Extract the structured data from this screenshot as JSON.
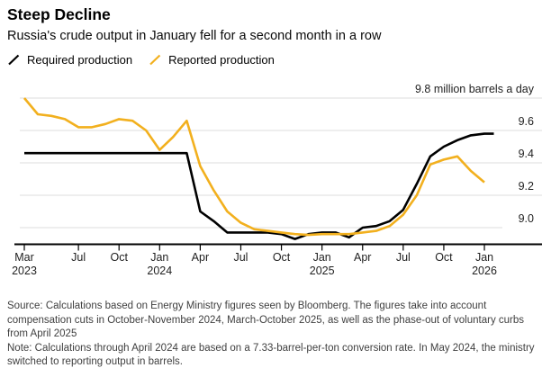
{
  "header": {
    "title": "Steep Decline",
    "subtitle": "Russia's crude output in January fell for a second month in a row"
  },
  "footer": {
    "source": "Source: Calculations based on Energy Ministry figures seen by Bloomberg. The figures take into account compensation cuts in October-November 2024, March-October 2025, as well as the phase-out of voluntary curbs from April 2025",
    "note": "Note: Calculations through April 2024 are based on a 7.33-barrel-per-ton conversion rate. In May 2024, the ministry switched to reporting output in barrels."
  },
  "colors": {
    "required_line": "#000000",
    "reported_line": "#F2B01E",
    "gridline": "#dcdcdc",
    "axis": "#000000",
    "tick_label": "#1f1f1f"
  },
  "chart_data": {
    "type": "line",
    "title": "Steep Decline",
    "subtitle": "Russia's crude output in January fell for a second month in a row",
    "unit": "million barrels a day",
    "x_start_month": "2023-03",
    "x_end_month": "2026-01",
    "ylim": [
      8.88,
      9.85
    ],
    "grid": "horizontal",
    "legend_position": "top-left",
    "x_ticks": [
      {
        "m": 0,
        "label": "Mar",
        "year": "2023"
      },
      {
        "m": 4,
        "label": "Jul"
      },
      {
        "m": 7,
        "label": "Oct"
      },
      {
        "m": 10,
        "label": "Jan",
        "year": "2024"
      },
      {
        "m": 13,
        "label": "Apr"
      },
      {
        "m": 16,
        "label": "Jul"
      },
      {
        "m": 19,
        "label": "Oct"
      },
      {
        "m": 22,
        "label": "Jan",
        "year": "2025"
      },
      {
        "m": 25,
        "label": "Apr"
      },
      {
        "m": 28,
        "label": "Jul"
      },
      {
        "m": 31,
        "label": "Oct"
      },
      {
        "m": 34,
        "label": "Jan",
        "year": "2026"
      }
    ],
    "y_ticks": [
      {
        "v": 9.8,
        "label": "9.8 million barrels a day"
      },
      {
        "v": 9.6,
        "label": "9.6"
      },
      {
        "v": 9.4,
        "label": "9.4"
      },
      {
        "v": 9.2,
        "label": "9.2"
      },
      {
        "v": 9.0,
        "label": "9.0",
        "short_grid": true
      }
    ],
    "series": [
      {
        "name": "Required production",
        "color": "#000000",
        "extend_months": 0.7,
        "values": [
          9.46,
          9.46,
          9.46,
          9.46,
          9.46,
          9.46,
          9.46,
          9.46,
          9.46,
          9.46,
          9.46,
          9.46,
          9.46,
          9.1,
          9.04,
          8.97,
          8.97,
          8.97,
          8.97,
          8.96,
          8.93,
          8.96,
          8.97,
          8.97,
          8.94,
          9.0,
          9.01,
          9.04,
          9.11,
          9.27,
          9.44,
          9.5,
          9.54,
          9.57,
          9.58
        ]
      },
      {
        "name": "Reported production",
        "color": "#F2B01E",
        "values": [
          9.8,
          9.7,
          9.69,
          9.67,
          9.62,
          9.62,
          9.64,
          9.67,
          9.66,
          9.6,
          9.48,
          9.56,
          9.66,
          9.38,
          9.23,
          9.1,
          9.03,
          8.99,
          8.98,
          8.97,
          8.96,
          8.955,
          8.96,
          8.96,
          8.96,
          8.97,
          8.98,
          9.01,
          9.08,
          9.2,
          9.39,
          9.42,
          9.44,
          9.35,
          9.28
        ]
      }
    ]
  }
}
